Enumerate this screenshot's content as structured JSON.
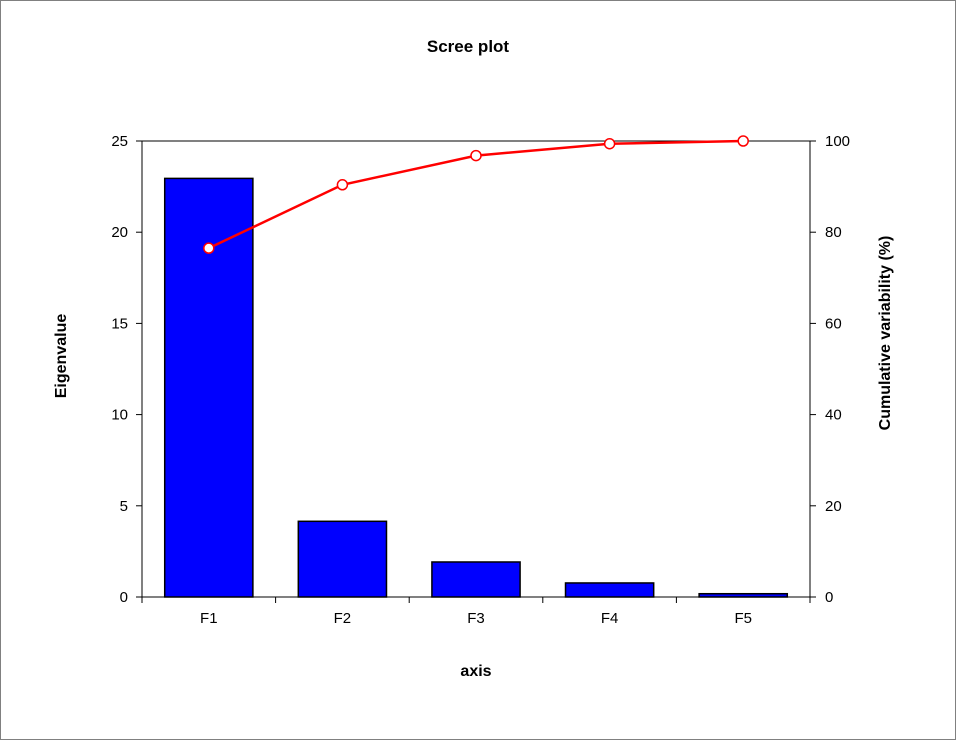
{
  "chart_data": {
    "type": "bar",
    "title": "Scree plot",
    "xlabel": "axis",
    "ylabel": "Eigenvalue",
    "y2label": "Cumulative variability (%)",
    "categories": [
      "F1",
      "F2",
      "F3",
      "F4",
      "F5"
    ],
    "ylim": [
      0,
      25
    ],
    "y2lim": [
      0,
      100
    ],
    "yticks": [
      "0",
      "5",
      "10",
      "15",
      "20",
      "25"
    ],
    "y2ticks": [
      "0",
      "20",
      "40",
      "60",
      "80",
      "100"
    ],
    "grid": false,
    "series": [
      {
        "type": "bar",
        "axis": "left",
        "values": [
          22.95,
          4.15,
          1.92,
          0.77,
          0.18
        ],
        "color": "#0000FF"
      },
      {
        "type": "line",
        "axis": "right",
        "values": [
          76.5,
          90.4,
          96.8,
          99.4,
          100.0
        ],
        "color": "#FF0000"
      }
    ]
  }
}
